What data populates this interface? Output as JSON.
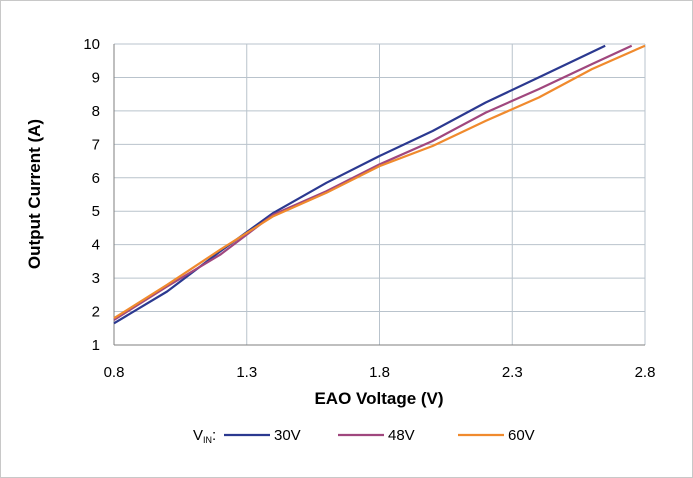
{
  "chart_data": {
    "type": "line",
    "xlabel": "EAO Voltage (V)",
    "ylabel": "Output Current (A)",
    "xlim": [
      0.8,
      2.8
    ],
    "ylim": [
      1,
      10
    ],
    "x_ticks": [
      "0.8",
      "1.3",
      "1.8",
      "2.3",
      "2.8"
    ],
    "y_ticks": [
      "1",
      "2",
      "3",
      "4",
      "5",
      "6",
      "7",
      "8",
      "9",
      "10"
    ],
    "grid": true,
    "legend": {
      "placement": "bottom",
      "prefix": "V",
      "prefix_subscript": "IN",
      "suffix": ":"
    },
    "series": [
      {
        "name": "30V",
        "color": "#2b3990",
        "points": [
          [
            0.8,
            1.65
          ],
          [
            1.0,
            2.6
          ],
          [
            1.2,
            3.8
          ],
          [
            1.4,
            4.95
          ],
          [
            1.6,
            5.85
          ],
          [
            1.8,
            6.65
          ],
          [
            2.0,
            7.4
          ],
          [
            2.2,
            8.25
          ],
          [
            2.4,
            9.0
          ],
          [
            2.65,
            9.95
          ]
        ]
      },
      {
        "name": "48V",
        "color": "#a0477e",
        "points": [
          [
            0.8,
            1.75
          ],
          [
            1.0,
            2.75
          ],
          [
            1.2,
            3.7
          ],
          [
            1.4,
            4.9
          ],
          [
            1.6,
            5.6
          ],
          [
            1.8,
            6.4
          ],
          [
            2.0,
            7.1
          ],
          [
            2.2,
            7.95
          ],
          [
            2.4,
            8.65
          ],
          [
            2.6,
            9.4
          ],
          [
            2.75,
            9.95
          ]
        ]
      },
      {
        "name": "60V",
        "color": "#f08a2d",
        "points": [
          [
            0.8,
            1.8
          ],
          [
            1.0,
            2.8
          ],
          [
            1.2,
            3.85
          ],
          [
            1.4,
            4.85
          ],
          [
            1.6,
            5.55
          ],
          [
            1.8,
            6.35
          ],
          [
            2.0,
            6.95
          ],
          [
            2.2,
            7.7
          ],
          [
            2.4,
            8.4
          ],
          [
            2.6,
            9.25
          ],
          [
            2.8,
            9.95
          ]
        ]
      }
    ]
  }
}
